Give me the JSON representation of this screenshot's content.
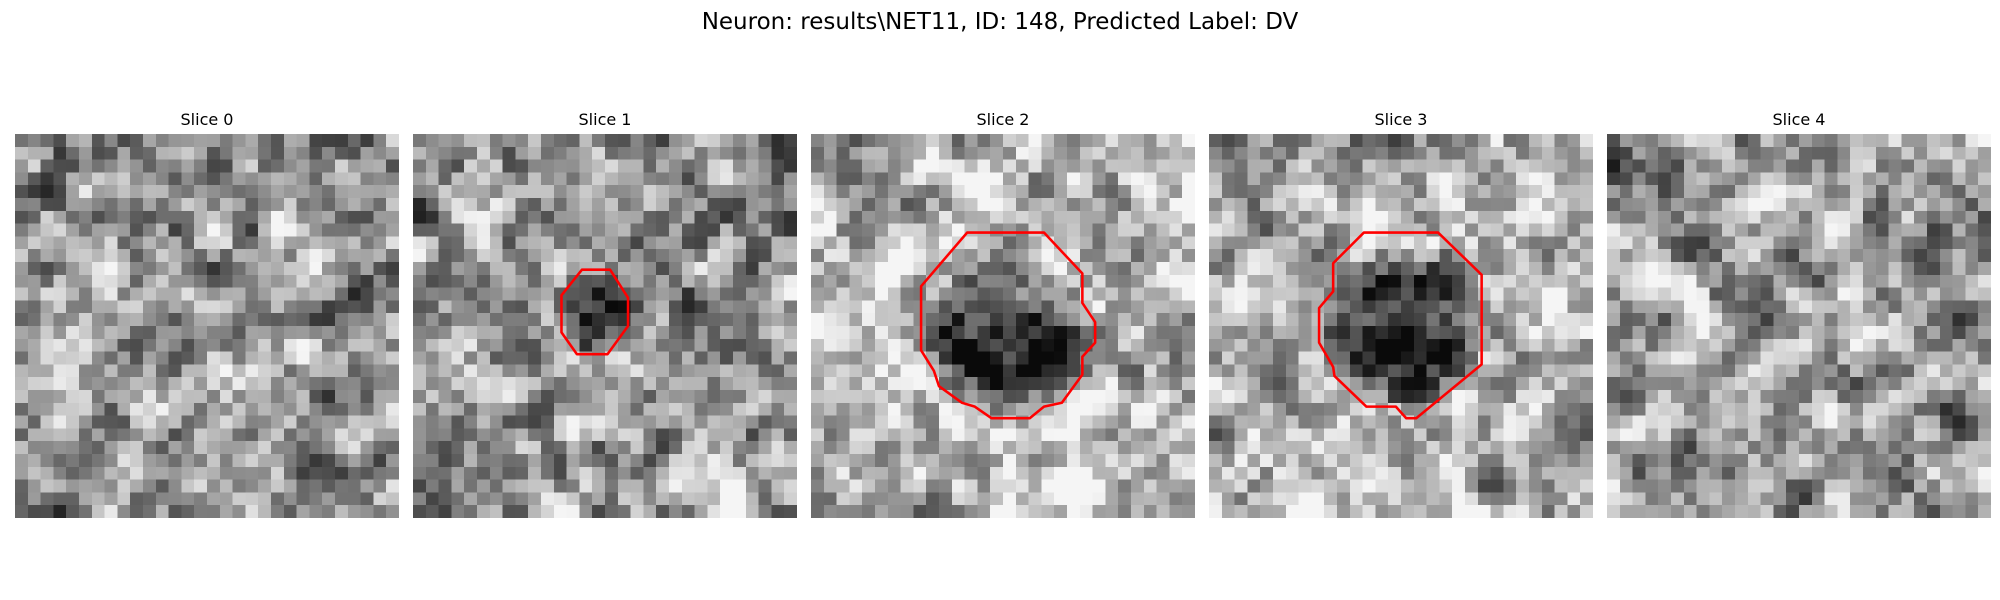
{
  "figure": {
    "title": "Neuron: results\\NET11, ID: 148, Predicted Label: DV",
    "contour_color": "#ff0000",
    "colormap": "gray",
    "grid_size": 30
  },
  "slices": [
    {
      "title": "Slice 0",
      "has_contour": false,
      "seed": 11,
      "spot": null,
      "base": 0.58,
      "contour": []
    },
    {
      "title": "Slice 1",
      "has_contour": true,
      "seed": 23,
      "spot": {
        "cx": 14.3,
        "cy": 14.0,
        "r": 3.6,
        "depth": 0.55
      },
      "base": 0.6,
      "contour": [
        [
          13.2,
          10.6
        ],
        [
          15.4,
          10.6
        ],
        [
          16.8,
          12.8
        ],
        [
          16.8,
          15.0
        ],
        [
          15.2,
          17.2
        ],
        [
          12.8,
          17.2
        ],
        [
          11.6,
          15.5
        ],
        [
          11.6,
          12.6
        ]
      ]
    },
    {
      "title": "Slice 2",
      "has_contour": true,
      "seed": 37,
      "spot": {
        "cx": 15.7,
        "cy": 16.1,
        "r": 7.0,
        "depth": 0.58
      },
      "base": 0.72,
      "contour": [
        [
          12.2,
          7.7
        ],
        [
          18.2,
          7.7
        ],
        [
          21.2,
          10.9
        ],
        [
          21.2,
          13.2
        ],
        [
          22.2,
          14.7
        ],
        [
          22.2,
          16.3
        ],
        [
          21.2,
          17.4
        ],
        [
          21.2,
          18.8
        ],
        [
          19.6,
          21.0
        ],
        [
          18.2,
          21.3
        ],
        [
          17.1,
          22.2
        ],
        [
          14.1,
          22.2
        ],
        [
          12.8,
          21.3
        ],
        [
          11.8,
          21.0
        ],
        [
          10.0,
          19.7
        ],
        [
          9.6,
          18.5
        ],
        [
          8.6,
          16.9
        ],
        [
          8.6,
          11.9
        ]
      ]
    },
    {
      "title": "Slice 3",
      "has_contour": true,
      "seed": 53,
      "spot": {
        "cx": 15.3,
        "cy": 14.9,
        "r": 6.6,
        "depth": 0.6
      },
      "base": 0.7,
      "contour": [
        [
          12.1,
          7.7
        ],
        [
          17.9,
          7.7
        ],
        [
          21.3,
          11.0
        ],
        [
          21.3,
          18.0
        ],
        [
          16.2,
          22.2
        ],
        [
          15.4,
          22.2
        ],
        [
          14.6,
          21.3
        ],
        [
          12.3,
          21.3
        ],
        [
          9.8,
          18.9
        ],
        [
          9.7,
          18.2
        ],
        [
          8.6,
          16.3
        ],
        [
          8.6,
          13.6
        ],
        [
          9.7,
          12.3
        ],
        [
          9.7,
          10.1
        ]
      ]
    },
    {
      "title": "Slice 4",
      "has_contour": false,
      "seed": 71,
      "spot": {
        "cx": 5.0,
        "cy": 15.2,
        "r": 2.4,
        "depth": 0.35
      },
      "base": 0.62,
      "contour": []
    }
  ]
}
